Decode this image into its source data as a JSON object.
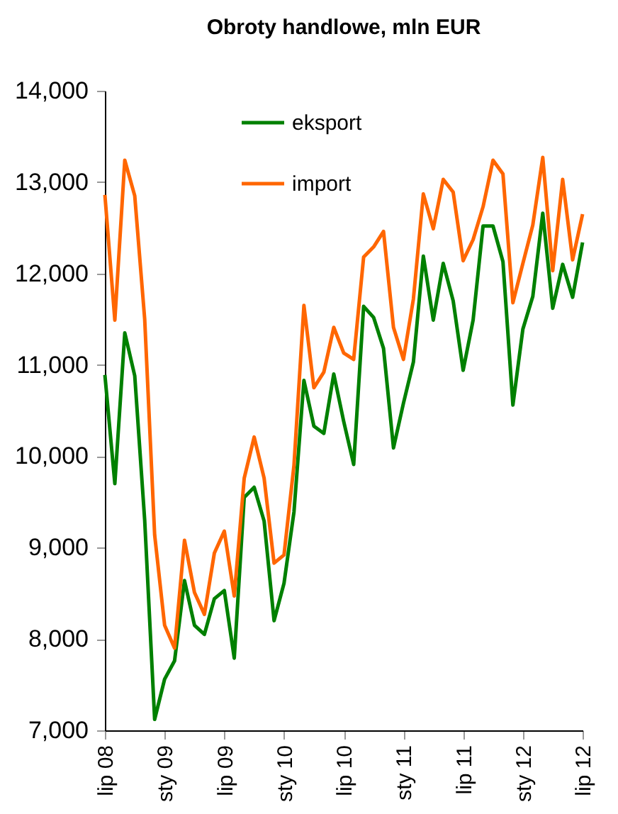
{
  "chart_data": {
    "type": "line",
    "title": "Obroty handlowe, mln EUR",
    "categories": [
      "lip 08",
      null,
      null,
      null,
      null,
      null,
      "sty 09",
      null,
      null,
      null,
      null,
      null,
      "lip 09",
      null,
      null,
      null,
      null,
      null,
      "sty 10",
      null,
      null,
      null,
      null,
      null,
      "lip 10",
      null,
      null,
      null,
      null,
      null,
      "sty 11",
      null,
      null,
      null,
      null,
      null,
      "lip 11",
      null,
      null,
      null,
      null,
      null,
      "sty 12",
      null,
      null,
      null,
      null,
      null,
      "lip 12"
    ],
    "series": [
      {
        "name": "eksport",
        "color": "#008000",
        "values": [
          10890,
          9700,
          11350,
          10880,
          9300,
          7120,
          7560,
          7760,
          8640,
          8150,
          8050,
          8440,
          8530,
          7790,
          9550,
          9660,
          9290,
          8200,
          8610,
          9390,
          10830,
          10330,
          10250,
          10900,
          10380,
          9910,
          11640,
          11520,
          11180,
          10090,
          10580,
          11030,
          12190,
          11490,
          12110,
          11700,
          10940,
          11490,
          12520,
          12520,
          12130,
          10560,
          11390,
          11750,
          12660,
          11620,
          12100,
          11740,
          12340
        ]
      },
      {
        "name": "import",
        "color": "#ff6600",
        "values": [
          12860,
          11490,
          13240,
          12850,
          11500,
          9140,
          8150,
          7900,
          9080,
          8510,
          8270,
          8940,
          9180,
          8470,
          9760,
          10210,
          9760,
          8830,
          8920,
          9900,
          11650,
          10750,
          10920,
          11410,
          11130,
          11060,
          12180,
          12290,
          12460,
          11410,
          11060,
          11720,
          12870,
          12490,
          13030,
          12890,
          12140,
          12370,
          12730,
          13240,
          13090,
          11680,
          12110,
          12530,
          13270,
          12030,
          13030,
          12150,
          12650
        ]
      }
    ],
    "ylim": [
      7000,
      14000
    ],
    "yticks": [
      {
        "value": 7000,
        "label": "7,000"
      },
      {
        "value": 8000,
        "label": "8,000"
      },
      {
        "value": 9000,
        "label": "9,000"
      },
      {
        "value": 10000,
        "label": "10,000"
      },
      {
        "value": 11000,
        "label": "11,000"
      },
      {
        "value": 12000,
        "label": "12,000"
      },
      {
        "value": 13000,
        "label": "13,000"
      },
      {
        "value": 14000,
        "label": "14,000"
      }
    ],
    "legend": "top",
    "grid": false,
    "marker": "none",
    "line_style": "solid"
  }
}
